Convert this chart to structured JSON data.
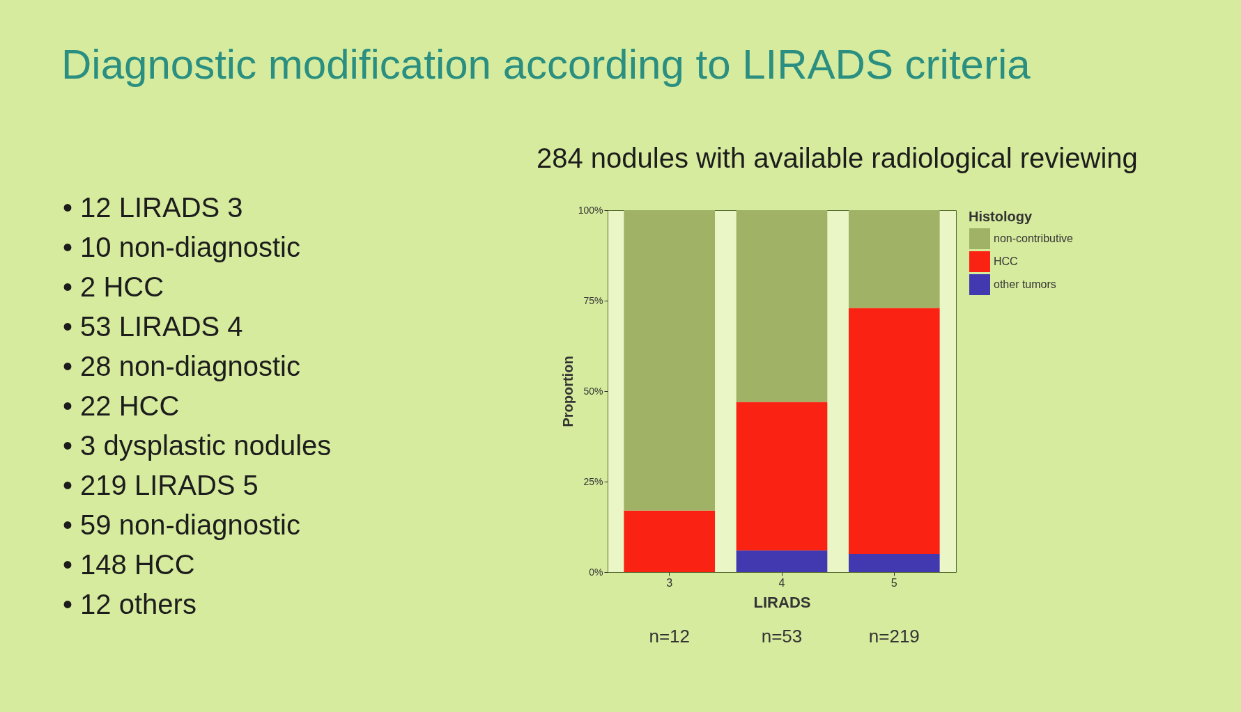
{
  "chart_data": {
    "type": "bar",
    "title": "Diagnostic modification according to LIRADS criteria",
    "subtitle": "284 nodules with available radiological reviewing",
    "xlabel": "LIRADS",
    "ylabel": "Proportion",
    "legend_title": "Histology",
    "categories": [
      "3",
      "4",
      "5"
    ],
    "stacked": true,
    "series": [
      {
        "name": "other tumors",
        "color": "#4238b0",
        "values": [
          0,
          6,
          5
        ]
      },
      {
        "name": "HCC",
        "color": "#fa2212",
        "values": [
          17,
          41,
          68
        ]
      },
      {
        "name": "non-contributive",
        "color": "#9fb265",
        "values": [
          83,
          53,
          27
        ]
      }
    ],
    "ylim": [
      0,
      100
    ],
    "yticks": [
      {
        "value": 0,
        "label": "0%"
      },
      {
        "value": 25,
        "label": "25%"
      },
      {
        "value": 50,
        "label": "50%"
      },
      {
        "value": 75,
        "label": "75%"
      },
      {
        "value": 100,
        "label": "100%"
      }
    ],
    "grid": false,
    "legend": "right",
    "annotations": [
      "• 12 LIRADS 3",
      "• 10 non-diagnostic",
      "• 2 HCC",
      "• 53 LIRADS 4",
      "• 28 non-diagnostic",
      "• 22 HCC",
      "• 3 dysplastic nodules",
      "• 219 LIRADS 5",
      "• 59 non-diagnostic",
      "• 148 HCC",
      "• 12 others",
      "n=12",
      "n=53",
      "n=219"
    ]
  }
}
